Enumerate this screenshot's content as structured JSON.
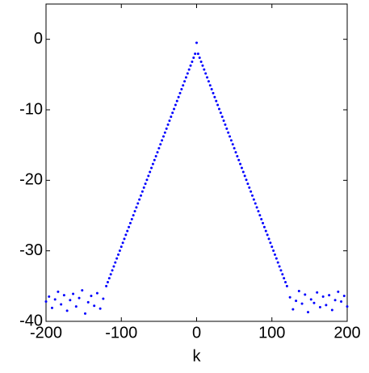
{
  "chart_data": {
    "type": "scatter",
    "xlabel": "k",
    "color": "#0000ff",
    "xlim": [
      -200,
      200
    ],
    "xticks": [
      -200,
      -100,
      0,
      100,
      200
    ],
    "ylim": [
      -40,
      5
    ],
    "yticks": [
      -40,
      -30,
      -20,
      -10,
      0
    ],
    "x": [
      -200,
      -196,
      -192,
      -188,
      -184,
      -180,
      -176,
      -172,
      -168,
      -164,
      -160,
      -156,
      -152,
      -148,
      -144,
      -140,
      -136,
      -132,
      -128,
      -124,
      -120,
      -118,
      -116,
      -114,
      -112,
      -110,
      -108,
      -106,
      -104,
      -102,
      -100,
      -98,
      -96,
      -94,
      -92,
      -90,
      -88,
      -86,
      -84,
      -82,
      -80,
      -78,
      -76,
      -74,
      -72,
      -70,
      -68,
      -66,
      -64,
      -62,
      -60,
      -58,
      -56,
      -54,
      -52,
      -50,
      -48,
      -46,
      -44,
      -42,
      -40,
      -38,
      -36,
      -34,
      -32,
      -30,
      -28,
      -26,
      -24,
      -22,
      -20,
      -18,
      -16,
      -14,
      -12,
      -10,
      -8,
      -6,
      -4,
      -2,
      0,
      2,
      4,
      6,
      8,
      10,
      12,
      14,
      16,
      18,
      20,
      22,
      24,
      26,
      28,
      30,
      32,
      34,
      36,
      38,
      40,
      42,
      44,
      46,
      48,
      50,
      52,
      54,
      56,
      58,
      60,
      62,
      64,
      66,
      68,
      70,
      72,
      74,
      76,
      78,
      80,
      82,
      84,
      86,
      88,
      90,
      92,
      94,
      96,
      98,
      100,
      102,
      104,
      106,
      108,
      110,
      112,
      114,
      116,
      118,
      120,
      124,
      128,
      132,
      136,
      140,
      144,
      148,
      152,
      156,
      160,
      164,
      168,
      172,
      176,
      180,
      184,
      188,
      192,
      196,
      200
    ],
    "values": [
      -37.2,
      -36.5,
      -38.1,
      -36.9,
      -35.8,
      -37.6,
      -36.3,
      -38.5,
      -37.0,
      -36.1,
      -37.9,
      -36.7,
      -35.6,
      -38.9,
      -37.3,
      -36.4,
      -37.8,
      -36.0,
      -38.2,
      -36.8,
      -35.0,
      -34.44,
      -33.89,
      -33.33,
      -32.77,
      -32.21,
      -31.65,
      -31.09,
      -30.54,
      -29.98,
      -29.42,
      -28.86,
      -28.3,
      -27.74,
      -27.19,
      -26.63,
      -26.07,
      -25.51,
      -24.95,
      -24.39,
      -23.84,
      -23.28,
      -22.72,
      -22.16,
      -21.6,
      -21.04,
      -20.49,
      -19.93,
      -19.37,
      -18.81,
      -18.25,
      -17.69,
      -17.13,
      -16.58,
      -16.02,
      -15.46,
      -14.9,
      -14.34,
      -13.78,
      -13.23,
      -12.67,
      -12.11,
      -11.55,
      -10.99,
      -10.43,
      -9.88,
      -9.32,
      -8.76,
      -8.2,
      -7.64,
      -7.08,
      -6.53,
      -5.97,
      -5.41,
      -4.85,
      -4.29,
      -3.73,
      -3.18,
      -2.62,
      -2.06,
      -0.5,
      -2.06,
      -2.62,
      -3.18,
      -3.73,
      -4.29,
      -4.85,
      -5.41,
      -5.97,
      -6.53,
      -7.08,
      -7.64,
      -8.2,
      -8.76,
      -9.32,
      -9.88,
      -10.43,
      -10.99,
      -11.55,
      -12.11,
      -12.67,
      -13.23,
      -13.78,
      -14.34,
      -14.9,
      -15.46,
      -16.02,
      -16.58,
      -17.13,
      -17.69,
      -18.25,
      -18.81,
      -19.37,
      -19.93,
      -20.49,
      -21.04,
      -21.6,
      -22.16,
      -22.72,
      -23.28,
      -23.84,
      -24.39,
      -24.95,
      -25.51,
      -26.07,
      -26.63,
      -27.19,
      -27.74,
      -28.3,
      -28.86,
      -29.42,
      -29.98,
      -30.54,
      -31.09,
      -31.65,
      -32.21,
      -32.77,
      -33.33,
      -33.89,
      -34.44,
      -35.0,
      -36.6,
      -38.3,
      -37.1,
      -35.7,
      -37.5,
      -36.2,
      -38.7,
      -36.9,
      -37.4,
      -35.9,
      -38.0,
      -36.5,
      -37.7,
      -36.3,
      -38.4,
      -37.0,
      -35.8,
      -37.2,
      -36.4,
      -37.9
    ]
  }
}
